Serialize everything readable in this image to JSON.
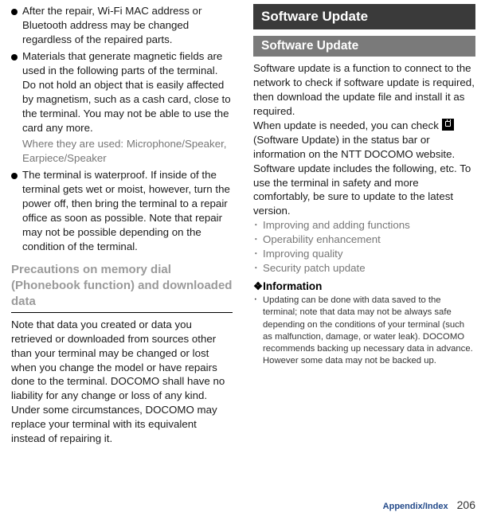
{
  "left": {
    "bullets": [
      "After the repair, Wi-Fi MAC address or Bluetooth address may be changed regardless of the repaired parts.",
      "Materials that generate magnetic fields are used in the following parts of the terminal. Do not hold an object that is easily affected by magnetism, such as a cash card, close to the terminal. You may not be able to use the card any more."
    ],
    "gray_note": "Where they are used: Microphone/Speaker, Earpiece/Speaker",
    "bullet3": "The terminal is waterproof. If inside of the terminal gets wet or moist, however, turn the power off, then bring the terminal to a repair office as soon as possible. Note that repair may not be possible depending on the condition of the terminal.",
    "heading": "Precautions on memory dial (Phonebook function) and downloaded data",
    "body": "Note that data you created or data you retrieved or downloaded from sources other than your terminal may be changed or lost when you change the model or have repairs done to the terminal. DOCOMO shall have no liability for any change or loss of any kind. Under some circumstances, DOCOMO may replace your terminal with its equivalent instead of repairing it."
  },
  "right": {
    "banner": "Software Update",
    "sub_banner": "Software Update",
    "intro1": "Software update is a function to connect to the network to check if software update is required, then download the update file and install it as required.",
    "intro2a": "When update is needed, you can check ",
    "intro2b": " (Software Update) in the status bar or information on the NTT DOCOMO website.",
    "intro3": "Software update includes the following, etc. To use the terminal in safety and more comfortably, be sure to update to the latest version.",
    "dots": [
      "Improving and adding functions",
      "Operability enhancement",
      "Improving quality",
      "Security patch update"
    ],
    "info_head": "❖Information",
    "info_item": "Updating can be done with data saved to the terminal; note that data may not be always safe depending on the conditions of your terminal (such as malfunction, damage, or water leak). DOCOMO recommends backing up necessary data in advance. However some data may not be backed up."
  },
  "footer": {
    "label": "Appendix/Index",
    "page": "206"
  }
}
